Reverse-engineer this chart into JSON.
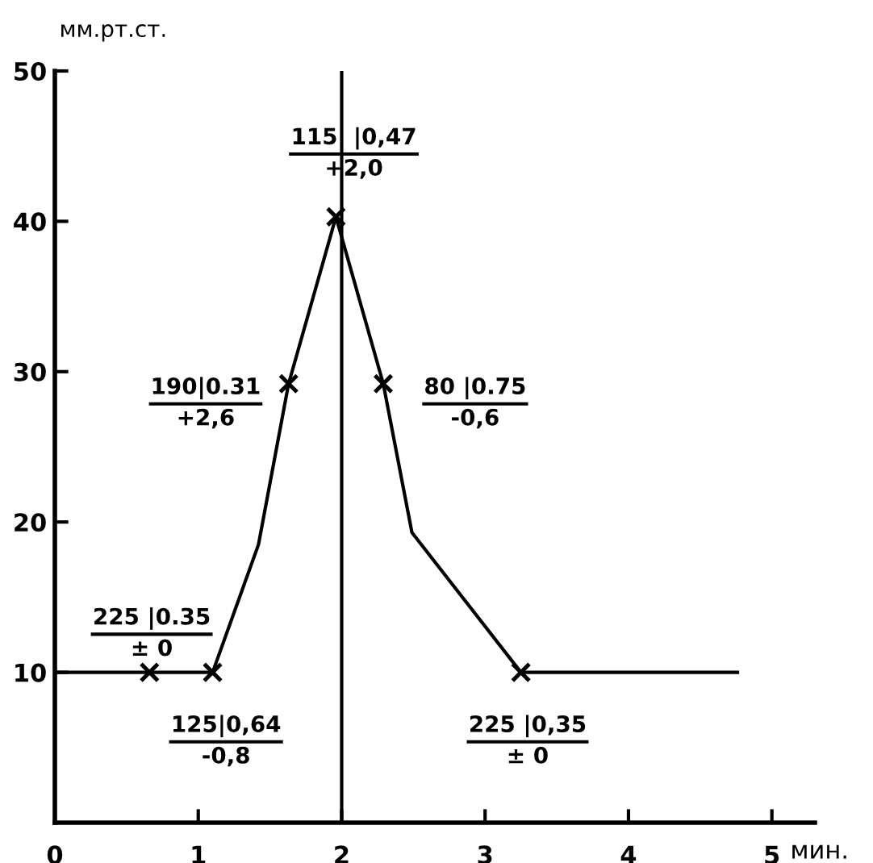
{
  "chart_data": {
    "type": "line",
    "xlabel": "мин.",
    "ylabel": "мм.рт.ст.",
    "series": [
      {
        "color": "#000000",
        "marker": "none",
        "x": [
          0,
          0.66,
          1.1,
          1.42,
          1.63,
          1.96,
          2.29,
          2.49,
          3.25,
          4.76
        ],
        "values": [
          10,
          10,
          10,
          18.5,
          29.2,
          40.3,
          29.2,
          19.3,
          10,
          10
        ]
      },
      {
        "type": "scatter",
        "color": "#000000",
        "marker": "cross",
        "x": [
          0.66,
          1.1,
          1.63,
          1.96,
          2.29,
          3.25
        ],
        "values": [
          10,
          10,
          29.2,
          40.3,
          29.2,
          10
        ]
      }
    ],
    "ref_lines": [
      {
        "axis": "x",
        "value": 2,
        "color": "#000000"
      }
    ],
    "xlim": [
      0,
      5.3
    ],
    "xticks": [
      0,
      1,
      2,
      3,
      4,
      5
    ],
    "ylim": [
      0,
      50
    ],
    "yticks": [
      10,
      20,
      30,
      40,
      50
    ],
    "grid": false,
    "legend": false,
    "annotations": [
      {
        "text": "115  |0,47\n+2,0",
        "x": 1.96,
        "y": 40.3
      },
      {
        "text": "190|0.31\n+2,6",
        "x": 1.63,
        "y": 29.2
      },
      {
        "text": "80 |0.75\n-0,6",
        "x": 2.29,
        "y": 29.2
      },
      {
        "text": "225 |0.35\n± 0",
        "x": 0.66,
        "y": 10
      },
      {
        "text": "125|0,64\n-0,8",
        "x": 1.1,
        "y": 10
      },
      {
        "text": "225 |0,35\n± 0",
        "x": 3.25,
        "y": 10
      }
    ]
  }
}
